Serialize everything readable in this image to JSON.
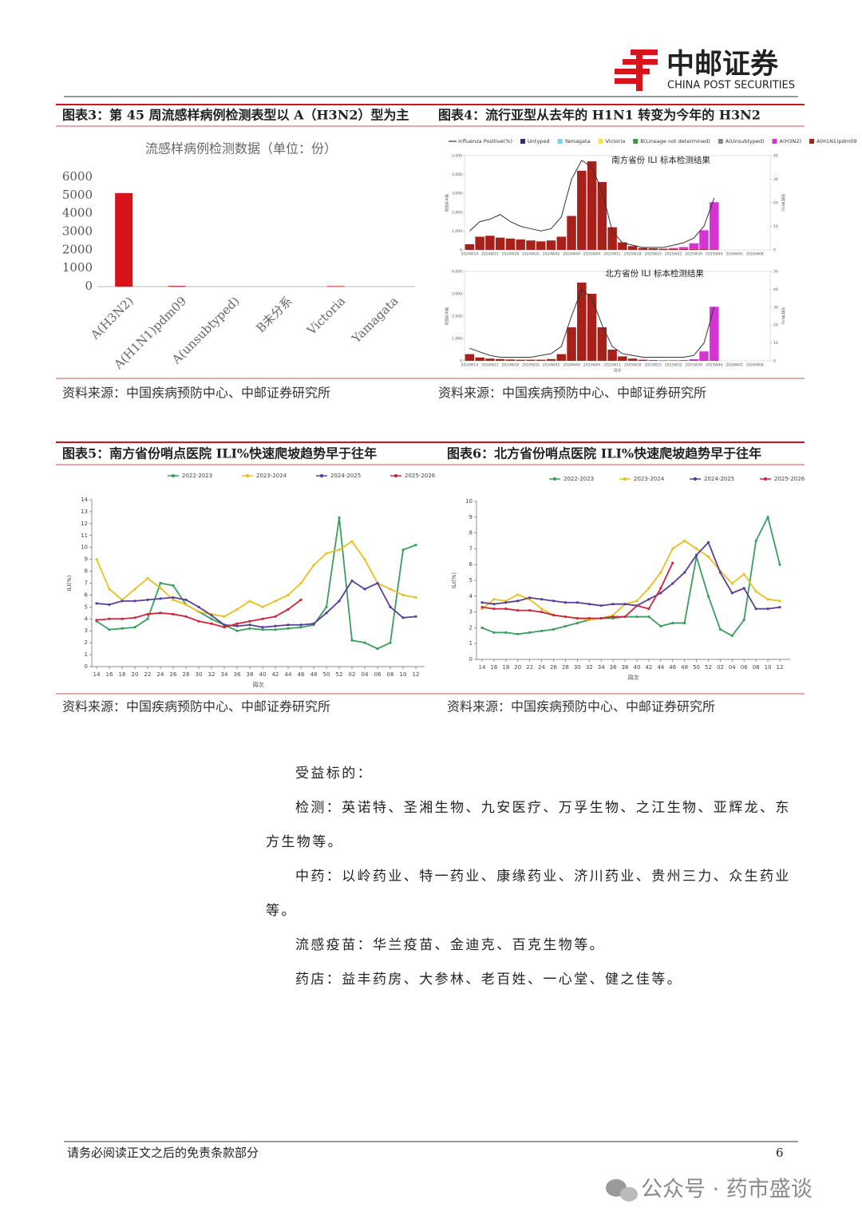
{
  "header": {
    "logo_cn": "中邮证券",
    "logo_en": "CHINA POST SECURITIES"
  },
  "figures": [
    {
      "title": "图表3：第 45 周流感样病例检测表型以 A（H3N2）型为主",
      "source": "资料来源：中国疾病预防中心、中邮证券研究所"
    },
    {
      "title": "图表4：流行亚型从去年的 H1N1 转变为今年的 H3N2",
      "source": "资料来源：中国疾病预防中心、中邮证券研究所"
    },
    {
      "title": "图表5：南方省份哨点医院 ILI%快速爬坡趋势早于往年",
      "source": "资料来源：中国疾病预防中心、中邮证券研究所"
    },
    {
      "title": "图表6：北方省份哨点医院 ILI%快速爬坡趋势早于往年",
      "source": "资料来源：中国疾病预防中心、中邮证券研究所"
    }
  ],
  "chart_data": [
    {
      "type": "bar",
      "title": "流感样病例检测数据（单位：份）",
      "categories": [
        "A(H3N2)",
        "A(H1N1)pdm09",
        "A(unsubtyped)",
        "B未分系",
        "Victoria",
        "Yamagata"
      ],
      "values": [
        5130,
        40,
        0,
        0,
        30,
        0
      ],
      "color": "#d7141a",
      "ylim": [
        0,
        6000
      ],
      "yticks": [
        0,
        1000,
        2000,
        3000,
        4000,
        5000,
        6000
      ]
    },
    {
      "type": "bar-line",
      "x_label": "周次",
      "y_label": "阳性标本数",
      "y2_label": "阳性率(%)",
      "categories": [
        "2024W14",
        null,
        "2024W21",
        null,
        "2024W28",
        null,
        "2024W35",
        null,
        "2024W42",
        null,
        "2024W49",
        null,
        "2025W04",
        null,
        "2025W11",
        null,
        "2025W18",
        null,
        "2025W25",
        null,
        "2025W32",
        null,
        "2025W39",
        null,
        "2025W46",
        null,
        "2026W01",
        null,
        "2026W08",
        null
      ],
      "series": [
        {
          "name": "influenza Positive(%)",
          "color": "#333333",
          "axis": "y2",
          "values": [
            [
              8,
              12,
              13,
              15,
              12,
              10,
              9,
              8,
              9,
              14,
              30,
              38,
              35,
              25,
              8,
              3,
              2,
              1,
              1,
              1,
              2,
              3,
              5,
              10,
              22,
              null,
              null,
              null,
              null,
              null
            ],
            [
              7,
              5,
              3,
              2,
              2,
              2,
              2,
              3,
              4,
              8,
              25,
              40,
              35,
              20,
              8,
              4,
              3,
              2,
              2,
              2,
              2,
              2,
              3,
              10,
              30,
              null,
              null,
              null,
              null,
              null
            ]
          ]
        },
        {
          "name": "Untyped",
          "color": "#2b2f6e"
        },
        {
          "name": "Yamagata",
          "color": "#6cd9e8"
        },
        {
          "name": "Victoria",
          "color": "#f4e542"
        },
        {
          "name": "B(Lineage not determined)",
          "color": "#3a9a3a"
        },
        {
          "name": "A(Unsubtyped)",
          "color": "#888888"
        },
        {
          "name": "A(H3N2)",
          "color": "#d633d6",
          "values": [
            [
              0,
              0,
              0,
              0,
              0,
              0,
              0,
              0,
              0,
              0,
              0,
              0,
              0,
              0,
              0,
              0,
              0,
              0,
              0,
              0,
              50,
              100,
              300,
              1000,
              2500,
              null,
              null,
              null,
              null,
              null
            ],
            [
              0,
              0,
              0,
              0,
              0,
              0,
              0,
              0,
              0,
              0,
              0,
              0,
              0,
              0,
              0,
              0,
              0,
              0,
              0,
              0,
              0,
              10,
              50,
              400,
              2400,
              null,
              null,
              null,
              null,
              null
            ]
          ]
        },
        {
          "name": "A(H1N1)pdm09",
          "color": "#a8201a",
          "values": [
            [
              300,
              700,
              750,
              650,
              600,
              550,
              500,
              450,
              500,
              700,
              1800,
              4200,
              4700,
              3600,
              1200,
              400,
              200,
              100,
              80,
              60,
              50,
              50,
              50,
              40,
              30,
              null,
              null,
              null,
              null,
              null
            ],
            [
              300,
              150,
              100,
              80,
              60,
              50,
              50,
              50,
              80,
              300,
              1500,
              3500,
              3000,
              1500,
              500,
              200,
              100,
              50,
              30,
              20,
              20,
              20,
              20,
              20,
              20,
              null,
              null,
              null,
              null,
              null
            ]
          ]
        }
      ],
      "panels": [
        {
          "title": "南方省份 ILI 标本检测结果",
          "ylim": [
            0,
            5000
          ],
          "yticks": [
            0,
            {
              "value": 1000,
              "label": "1,000"
            },
            {
              "value": 2000,
              "label": "2,000"
            },
            {
              "value": 3000,
              "label": "3,000"
            },
            {
              "value": 4000,
              "label": "4,000"
            },
            {
              "value": 5000,
              "label": "5,000"
            }
          ],
          "y2lim": [
            0,
            40
          ],
          "y2ticks": [
            0,
            10,
            20,
            30,
            40
          ]
        },
        {
          "title": "北方省份 ILI 标本检测结果",
          "ylim": [
            0,
            4000
          ],
          "yticks": [
            0,
            {
              "value": 1000,
              "label": "1,000"
            },
            {
              "value": 2000,
              "label": "2,000"
            },
            {
              "value": 3000,
              "label": "3,000"
            },
            {
              "value": 4000,
              "label": "4,000"
            }
          ],
          "y2lim": [
            0,
            50
          ],
          "y2ticks": [
            0,
            10,
            20,
            30,
            40,
            50
          ]
        }
      ]
    },
    {
      "type": "line",
      "x_label": "周次",
      "y_label": "ILI(%)",
      "categories": [
        "14",
        "16",
        "18",
        "20",
        "22",
        "24",
        "26",
        "28",
        "30",
        "32",
        "34",
        "36",
        "38",
        "40",
        "42",
        "44",
        "46",
        "48",
        "50",
        "52",
        "02",
        "04",
        "06",
        "08",
        "10",
        "12"
      ],
      "ylim": [
        0,
        14
      ],
      "yticks": [
        0,
        1,
        2,
        3,
        4,
        5,
        6,
        7,
        8,
        9,
        10,
        11,
        12,
        13,
        14
      ],
      "series": [
        {
          "name": "2022-2023",
          "color": "#3a9e5c",
          "values": [
            3.8,
            3.1,
            3.2,
            3.3,
            4.0,
            7.0,
            6.8,
            5.2,
            4.6,
            4.0,
            3.5,
            3.0,
            3.2,
            3.1,
            3.1,
            3.2,
            3.3,
            3.5,
            5.0,
            12.5,
            2.2,
            2.0,
            1.5,
            2.0,
            9.8,
            10.2
          ]
        },
        {
          "name": "2023-2024",
          "color": "#e8c020",
          "values": [
            9.0,
            6.5,
            5.6,
            6.5,
            7.4,
            6.6,
            5.6,
            5.2,
            4.6,
            4.4,
            4.2,
            4.8,
            5.5,
            5.0,
            5.5,
            6.0,
            7.0,
            8.5,
            9.5,
            9.8,
            10.5,
            9.0,
            7.0,
            6.5,
            6.0,
            5.8
          ]
        },
        {
          "name": "2024-2025",
          "color": "#5a3d9a",
          "values": [
            5.3,
            5.2,
            5.5,
            5.5,
            5.6,
            5.7,
            5.8,
            5.6,
            5.0,
            4.3,
            3.5,
            3.4,
            3.5,
            3.3,
            3.4,
            3.5,
            3.5,
            3.6,
            4.5,
            5.5,
            7.2,
            6.5,
            7.0,
            5.0,
            4.1,
            4.2
          ]
        },
        {
          "name": "2025-2026",
          "color": "#c8283c",
          "values": [
            3.9,
            4.0,
            4.0,
            4.1,
            4.4,
            4.5,
            4.4,
            4.2,
            3.8,
            3.6,
            3.3,
            3.6,
            3.8,
            4.0,
            4.2,
            4.8,
            5.6,
            null,
            null,
            null,
            null,
            null,
            null,
            null,
            null,
            null
          ]
        }
      ]
    },
    {
      "type": "line",
      "x_label": "周次",
      "y_label": "ILI(%)",
      "categories": [
        "14",
        "16",
        "18",
        "20",
        "22",
        "24",
        "26",
        "28",
        "30",
        "32",
        "34",
        "36",
        "38",
        "40",
        "42",
        "44",
        "46",
        "48",
        "50",
        "52",
        "02",
        "04",
        "06",
        "08",
        "10",
        "12"
      ],
      "ylim": [
        0,
        10
      ],
      "yticks": [
        0,
        1,
        2,
        3,
        4,
        5,
        6,
        7,
        8,
        9,
        10
      ],
      "series": [
        {
          "name": "2022-2023",
          "color": "#3a9e5c",
          "values": [
            2.0,
            1.7,
            1.7,
            1.6,
            1.7,
            1.8,
            1.9,
            2.1,
            2.3,
            2.5,
            2.6,
            2.6,
            2.7,
            2.7,
            2.7,
            2.1,
            2.3,
            2.3,
            6.5,
            4.0,
            1.9,
            1.5,
            2.5,
            7.5,
            9.0,
            6.0
          ]
        },
        {
          "name": "2023-2024",
          "color": "#e8c020",
          "values": [
            3.2,
            3.8,
            3.7,
            4.1,
            3.8,
            3.2,
            2.8,
            2.7,
            2.6,
            2.5,
            2.6,
            2.8,
            3.5,
            3.7,
            4.5,
            5.5,
            7.0,
            7.5,
            7.0,
            6.5,
            5.6,
            4.8,
            5.4,
            4.3,
            3.8,
            3.7
          ]
        },
        {
          "name": "2024-2025",
          "color": "#5a3d9a",
          "values": [
            3.6,
            3.5,
            3.6,
            3.7,
            3.9,
            3.8,
            3.7,
            3.6,
            3.6,
            3.5,
            3.4,
            3.5,
            3.5,
            3.4,
            3.8,
            4.2,
            4.8,
            5.5,
            6.6,
            7.4,
            5.5,
            4.2,
            4.5,
            3.2,
            3.2,
            3.3
          ]
        },
        {
          "name": "2025-2026",
          "color": "#c8283c",
          "values": [
            3.3,
            3.2,
            3.2,
            3.1,
            3.1,
            3.0,
            2.8,
            2.7,
            2.6,
            2.6,
            2.6,
            2.7,
            2.7,
            3.4,
            3.2,
            4.5,
            6.1,
            null,
            null,
            null,
            null,
            null,
            null,
            null,
            null,
            null
          ]
        }
      ]
    }
  ],
  "body": {
    "heading": "受益标的：",
    "items": [
      "检测：英诺特、圣湘生物、九安医疗、万孚生物、之江生物、亚辉龙、东方生物等。",
      "中药：以岭药业、特一药业、康缘药业、济川药业、贵州三力、众生药业等。",
      "流感疫苗：华兰疫苗、金迪克、百克生物等。",
      "药店：益丰药房、大参林、老百姓、一心堂、健之佳等。"
    ]
  },
  "footer": {
    "disclaimer": "请务必阅读正文之后的免责条款部分",
    "page": 6
  },
  "watermark": "公众号 · 药市盛谈"
}
